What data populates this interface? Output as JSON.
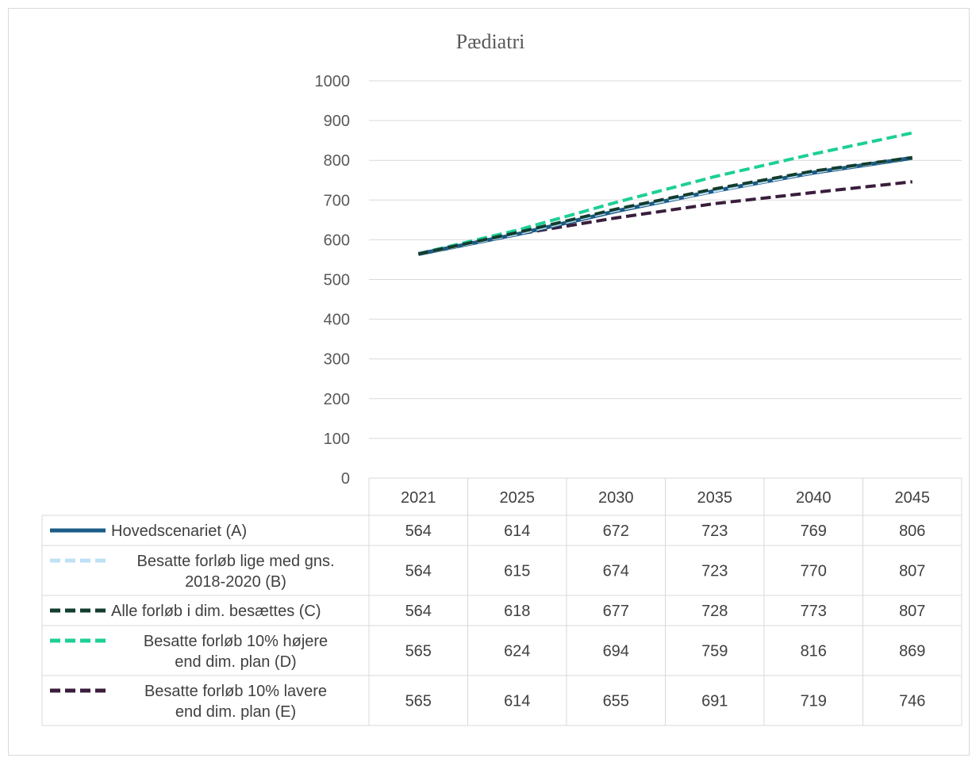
{
  "chart_data": {
    "type": "line",
    "title": "Pædiatri",
    "x": [
      "2021",
      "2025",
      "2030",
      "2035",
      "2040",
      "2045"
    ],
    "ylim": [
      0,
      1000
    ],
    "yticks": [
      "0",
      "100",
      "200",
      "300",
      "400",
      "500",
      "600",
      "700",
      "800",
      "900",
      "1000"
    ],
    "grid": true,
    "legend": "data table below chart",
    "series": [
      {
        "name": "Hovedscenariet (A)",
        "label_lines": [
          "Hovedscenariet (A)"
        ],
        "values": [
          564,
          614,
          672,
          723,
          769,
          806
        ],
        "color": "#1b5b87",
        "style": "solid"
      },
      {
        "name": "Besatte forløb lige med gns. 2018-2020 (B)",
        "label_lines": [
          "Besatte forløb lige med gns.",
          "2018-2020 (B)"
        ],
        "values": [
          564,
          615,
          674,
          723,
          770,
          807
        ],
        "color": "#bfe0f5",
        "style": "dashed"
      },
      {
        "name": "Alle forløb i dim. besættes (C)",
        "label_lines": [
          "Alle forløb i dim. besættes (C)"
        ],
        "values": [
          564,
          618,
          677,
          728,
          773,
          807
        ],
        "color": "#123d2f",
        "style": "dashed"
      },
      {
        "name": "Besatte forløb 10% højere end dim. plan (D)",
        "label_lines": [
          "Besatte forløb 10% højere",
          "end dim. plan (D)"
        ],
        "values": [
          565,
          624,
          694,
          759,
          816,
          869
        ],
        "color": "#1ccf96",
        "style": "dashed"
      },
      {
        "name": "Besatte forløb 10% lavere end dim. plan (E)",
        "label_lines": [
          "Besatte forløb 10% lavere",
          "end dim. plan (E)"
        ],
        "values": [
          565,
          614,
          655,
          691,
          719,
          746
        ],
        "color": "#3a1d3c",
        "style": "dashed"
      }
    ]
  }
}
